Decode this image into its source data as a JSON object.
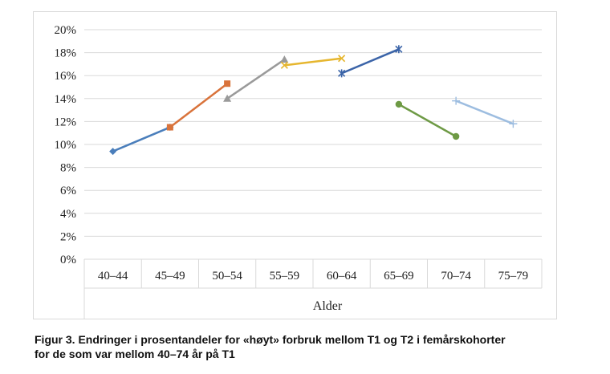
{
  "caption": {
    "line1": "Figur 3. Endringer i prosentandeler for «høyt» forbruk mellom T1 og T2 i femårskohorter",
    "line2": "for de som var mellom 40–74 år på T1"
  },
  "chart_data": {
    "type": "line",
    "xlabel": "Alder",
    "ylabel": "",
    "categories": [
      "40–44",
      "45–49",
      "50–54",
      "55–59",
      "60–64",
      "65–69",
      "70–74",
      "75–79"
    ],
    "ylim": [
      0,
      20
    ],
    "yticks": [
      "0%",
      "2%",
      "4%",
      "6%",
      "8%",
      "10%",
      "12%",
      "14%",
      "16%",
      "18%",
      "20%"
    ],
    "grid": true,
    "legend": "none",
    "series": [
      {
        "points": [
          {
            "x": "40–44",
            "y": 9.4
          },
          {
            "x": "45–49",
            "y": 11.5
          }
        ],
        "color": "#4a7ebb",
        "marker": "diamond"
      },
      {
        "points": [
          {
            "x": "45–49",
            "y": 11.5
          },
          {
            "x": "50–54",
            "y": 15.3
          }
        ],
        "color": "#d9733b",
        "marker": "square"
      },
      {
        "points": [
          {
            "x": "50–54",
            "y": 14.0
          },
          {
            "x": "55–59",
            "y": 17.4
          }
        ],
        "color": "#9a9a9a",
        "marker": "triangle"
      },
      {
        "points": [
          {
            "x": "55–59",
            "y": 16.9
          },
          {
            "x": "60–64",
            "y": 17.5
          }
        ],
        "color": "#e6b62e",
        "marker": "x"
      },
      {
        "points": [
          {
            "x": "60–64",
            "y": 16.2
          },
          {
            "x": "65–69",
            "y": 18.3
          }
        ],
        "color": "#3b64a8",
        "marker": "star"
      },
      {
        "points": [
          {
            "x": "65–69",
            "y": 13.5
          },
          {
            "x": "70–74",
            "y": 10.7
          }
        ],
        "color": "#6e9a45",
        "marker": "circle"
      },
      {
        "points": [
          {
            "x": "70–74",
            "y": 13.8
          },
          {
            "x": "75–79",
            "y": 11.8
          }
        ],
        "color": "#9dbde0",
        "marker": "plus"
      }
    ]
  }
}
